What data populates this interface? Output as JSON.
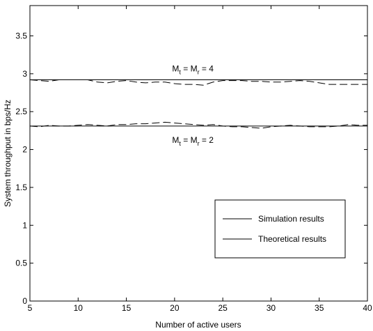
{
  "chart_data": {
    "type": "line",
    "title": "",
    "xlabel": "Number of active users",
    "ylabel": "System throughput in bps/Hz",
    "xlim": [
      5,
      40
    ],
    "ylim": [
      0,
      3.9
    ],
    "xticks": [
      5,
      10,
      15,
      20,
      25,
      30,
      35,
      40
    ],
    "xtick_labels": [
      "5",
      "10",
      "15",
      "20",
      "25",
      "30",
      "35",
      "40"
    ],
    "yticks": [
      0,
      0.5,
      1,
      1.5,
      2,
      2.5,
      3,
      3.5
    ],
    "ytick_labels": [
      "0",
      "0.5",
      "1",
      "1.5",
      "2",
      "2.5",
      "3",
      "3.5"
    ],
    "grid": false,
    "legend_position": "lower-right",
    "legend": [
      {
        "label": "Simulation results",
        "style": "solid"
      },
      {
        "label": "Theoretical results",
        "style": "solid"
      }
    ],
    "annotations": [
      {
        "id": "mt4",
        "base1": "M",
        "sub1": "t",
        "mid": " = M",
        "sub2": "r",
        "tail": " = 4",
        "x": 21.9,
        "y": 3.03
      },
      {
        "id": "mt2",
        "base1": "M",
        "sub1": "t",
        "mid": " = M",
        "sub2": "r",
        "tail": " = 2",
        "x": 21.9,
        "y": 2.09
      }
    ],
    "series": [
      {
        "id": "theory-4",
        "style": "solid",
        "x": [
          5,
          40
        ],
        "y": [
          2.92,
          2.92
        ]
      },
      {
        "id": "sim-4",
        "style": "dashed",
        "x": [
          5,
          6,
          7,
          8,
          9,
          10,
          11,
          12,
          13,
          14,
          15,
          16,
          17,
          18,
          19,
          20,
          21,
          22,
          23,
          24,
          25,
          26,
          27,
          28,
          29,
          30,
          31,
          32,
          33,
          34,
          35,
          36,
          37,
          38,
          39,
          40
        ],
        "y": [
          2.92,
          2.91,
          2.9,
          2.92,
          2.92,
          2.92,
          2.92,
          2.89,
          2.88,
          2.9,
          2.91,
          2.89,
          2.88,
          2.89,
          2.89,
          2.87,
          2.86,
          2.86,
          2.85,
          2.89,
          2.91,
          2.91,
          2.91,
          2.9,
          2.9,
          2.89,
          2.89,
          2.9,
          2.91,
          2.9,
          2.88,
          2.86,
          2.86,
          2.86,
          2.86,
          2.86
        ]
      },
      {
        "id": "theory-2",
        "style": "solid",
        "x": [
          5,
          40
        ],
        "y": [
          2.31,
          2.31
        ]
      },
      {
        "id": "sim-2",
        "style": "dashed",
        "x": [
          5,
          6,
          7,
          8,
          9,
          10,
          11,
          12,
          13,
          14,
          15,
          16,
          17,
          18,
          19,
          20,
          21,
          22,
          23,
          24,
          25,
          26,
          27,
          28,
          29,
          30,
          31,
          32,
          33,
          34,
          35,
          36,
          37,
          38,
          39,
          40
        ],
        "y": [
          2.31,
          2.3,
          2.32,
          2.31,
          2.31,
          2.32,
          2.33,
          2.32,
          2.31,
          2.33,
          2.33,
          2.34,
          2.34,
          2.35,
          2.36,
          2.35,
          2.34,
          2.33,
          2.32,
          2.33,
          2.31,
          2.3,
          2.3,
          2.29,
          2.28,
          2.3,
          2.31,
          2.32,
          2.31,
          2.3,
          2.3,
          2.3,
          2.31,
          2.33,
          2.32,
          2.32
        ]
      }
    ]
  }
}
